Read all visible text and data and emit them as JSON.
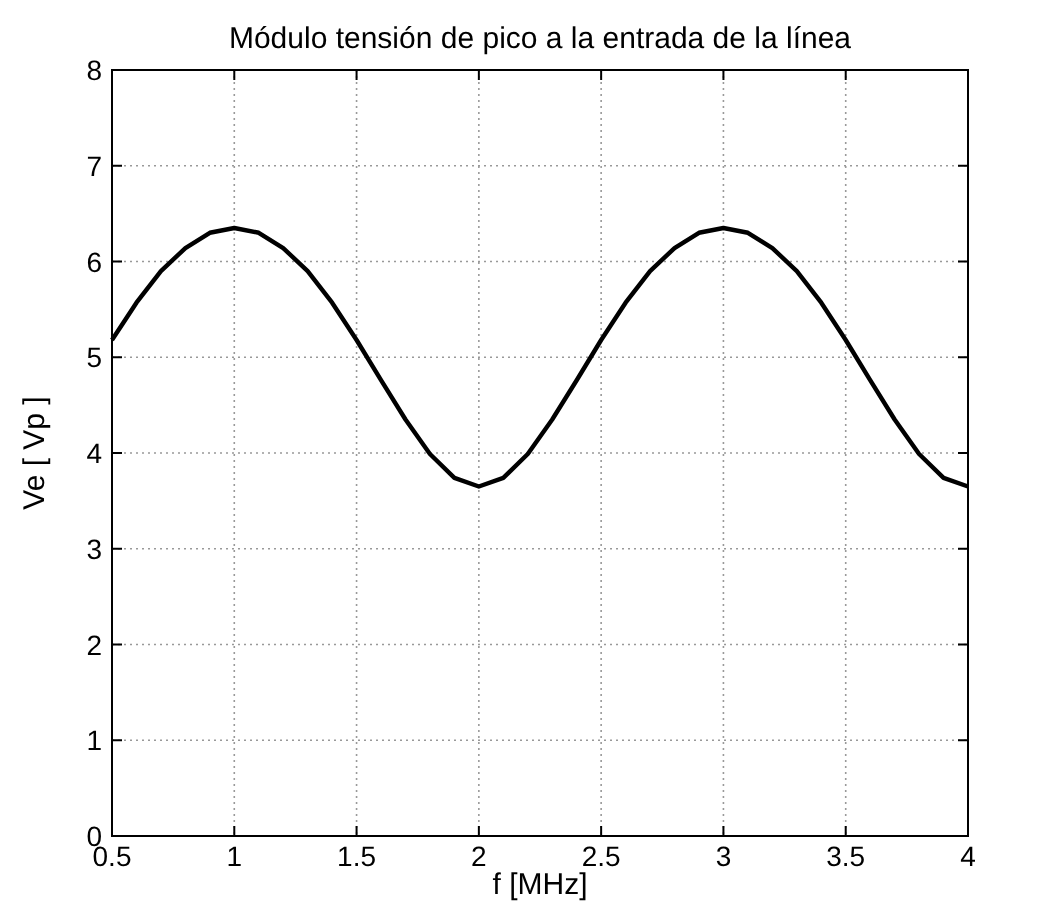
{
  "chart_data": {
    "type": "line",
    "title": "Módulo tensión de pico a la entrada de la línea",
    "xlabel": "f [MHz]",
    "ylabel": "Ve [ Vp ]",
    "x": [
      0.5,
      0.6,
      0.7,
      0.8,
      0.9,
      1.0,
      1.1,
      1.2,
      1.3,
      1.4,
      1.5,
      1.6,
      1.7,
      1.8,
      1.9,
      2.0,
      2.1,
      2.2,
      2.3,
      2.4,
      2.5,
      2.6,
      2.7,
      2.8,
      2.9,
      3.0,
      3.1,
      3.2,
      3.3,
      3.4,
      3.5,
      3.6,
      3.7,
      3.8,
      3.9,
      4.0
    ],
    "series": [
      {
        "color": "#000000",
        "values": [
          5.18,
          5.57,
          5.9,
          6.14,
          6.3,
          6.35,
          6.3,
          6.14,
          5.9,
          5.57,
          5.18,
          4.76,
          4.35,
          3.99,
          3.74,
          3.65,
          3.74,
          3.99,
          4.35,
          4.76,
          5.18,
          5.57,
          5.9,
          6.14,
          6.3,
          6.35,
          6.3,
          6.14,
          5.9,
          5.57,
          5.18,
          4.76,
          4.35,
          3.99,
          3.74,
          3.65
        ]
      }
    ],
    "xlim": [
      0.5,
      4
    ],
    "xticks": [
      0.5,
      1,
      1.5,
      2,
      2.5,
      3,
      3.5,
      4
    ],
    "ylim": [
      0,
      8
    ],
    "yticks": [
      0,
      1,
      2,
      3,
      4,
      5,
      6,
      7,
      8
    ],
    "grid": true,
    "line_style": "solid"
  }
}
